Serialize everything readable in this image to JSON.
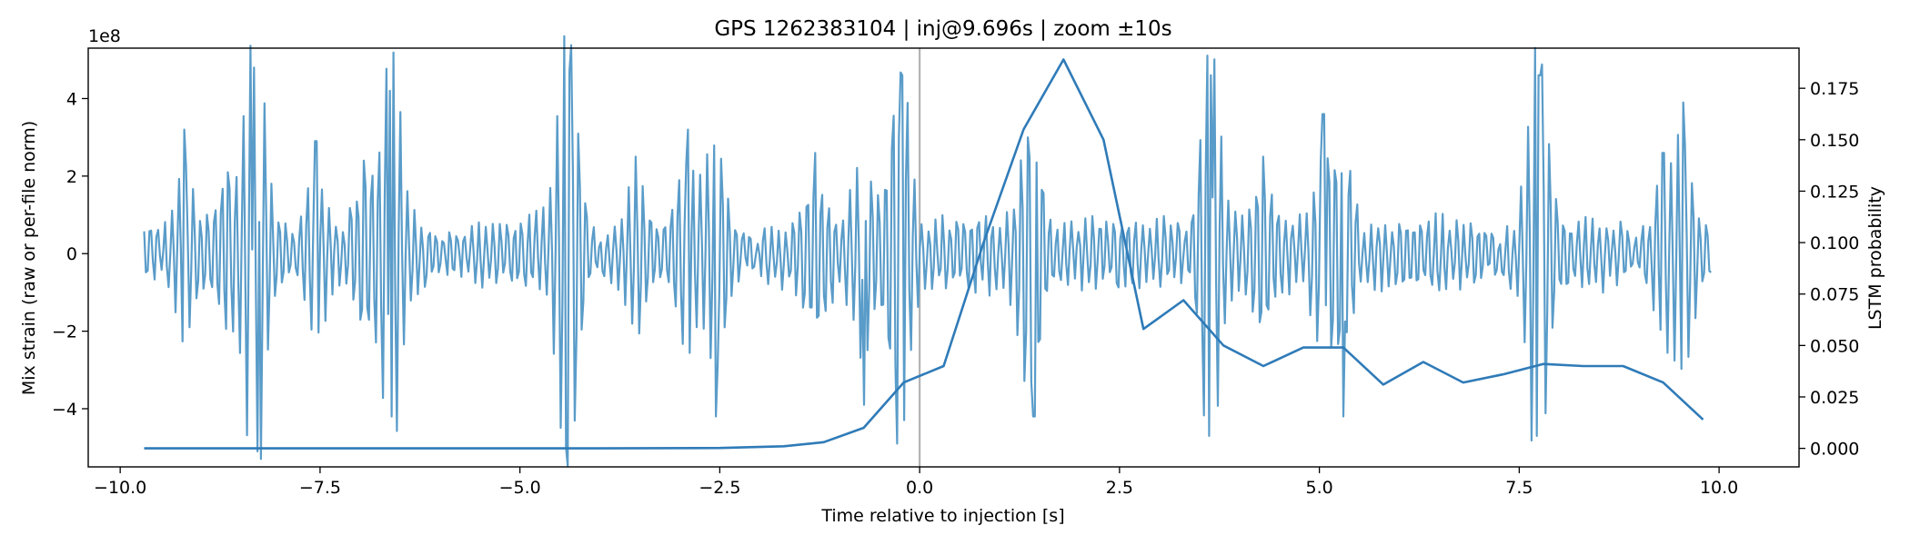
{
  "chart_data": {
    "type": "line",
    "title": "GPS 1262383104 | inj@9.696s | zoom ±10s",
    "xlabel": "Time relative to injection [s]",
    "ylabel_left": "Mix strain (raw or per-file norm)",
    "ylabel_right": "LSTM probability",
    "offset_text": "1e8",
    "xlim": [
      -10.4,
      11.0
    ],
    "ylim_left": [
      -5.5,
      5.3
    ],
    "ylim_right": [
      -0.009,
      0.1945
    ],
    "x_ticks": [
      -10.0,
      -7.5,
      -5.0,
      -2.5,
      0.0,
      2.5,
      5.0,
      7.5,
      10.0
    ],
    "x_tick_labels": [
      "−10.0",
      "−7.5",
      "−5.0",
      "−2.5",
      "0.0",
      "2.5",
      "5.0",
      "7.5",
      "10.0"
    ],
    "y_left_ticks": [
      -4,
      -2,
      0,
      2,
      4
    ],
    "y_left_tick_labels": [
      "−4",
      "−2",
      "0",
      "2",
      "4"
    ],
    "y_right_ticks": [
      0.0,
      0.025,
      0.05,
      0.075,
      0.1,
      0.125,
      0.15,
      0.175
    ],
    "y_right_tick_labels": [
      "0.000",
      "0.025",
      "0.050",
      "0.075",
      "0.100",
      "0.125",
      "0.150",
      "0.175"
    ],
    "injection_marker_x": 0.0,
    "strain_series": {
      "name": "Mix strain",
      "color": "#5a9cc9",
      "x_range": [
        -9.7,
        9.9
      ],
      "base_amplitude": 0.9,
      "note": "dense oscillating strain time series, values in units of 1e8",
      "bursts": [
        {
          "t": -9.2,
          "peak": 3.2
        },
        {
          "t": -8.65,
          "peak": 2.1
        },
        {
          "t": -8.33,
          "peak": 4.8
        },
        {
          "t": -8.29,
          "peak": -5.1
        },
        {
          "t": -7.55,
          "peak": 2.9
        },
        {
          "t": -6.95,
          "peak": 2.4
        },
        {
          "t": -6.62,
          "peak": 4.2
        },
        {
          "t": -6.6,
          "peak": -4.2
        },
        {
          "t": -4.38,
          "peak": 4.7
        },
        {
          "t": -4.42,
          "peak": -5.0
        },
        {
          "t": -3.55,
          "peak": 2.5
        },
        {
          "t": -2.9,
          "peak": 3.2
        },
        {
          "t": -2.55,
          "peak": -4.2
        },
        {
          "t": -1.3,
          "peak": 2.6
        },
        {
          "t": -0.7,
          "peak": -3.9
        },
        {
          "t": -0.22,
          "peak": 4.6
        },
        {
          "t": -0.28,
          "peak": -4.9
        },
        {
          "t": 1.35,
          "peak": 3.0
        },
        {
          "t": 1.43,
          "peak": -4.2
        },
        {
          "t": 3.65,
          "peak": 4.6
        },
        {
          "t": 3.62,
          "peak": -4.7
        },
        {
          "t": 4.3,
          "peak": 2.5
        },
        {
          "t": 5.3,
          "peak": -4.2
        },
        {
          "t": 5.05,
          "peak": 3.6
        },
        {
          "t": 7.75,
          "peak": 4.6
        },
        {
          "t": 7.72,
          "peak": -4.7
        },
        {
          "t": 9.3,
          "peak": 2.6
        },
        {
          "t": 9.55,
          "peak": 3.9
        }
      ]
    },
    "probability_series": {
      "name": "LSTM probability",
      "color": "#2f7bb8",
      "x": [
        -9.7,
        -8.0,
        -6.0,
        -4.0,
        -2.5,
        -1.7,
        -1.2,
        -0.7,
        -0.2,
        0.3,
        0.8,
        1.3,
        1.8,
        2.3,
        2.8,
        3.3,
        3.8,
        4.3,
        4.8,
        5.3,
        5.8,
        6.3,
        6.8,
        7.3,
        7.8,
        8.3,
        8.8,
        9.3,
        9.8
      ],
      "values": [
        0.0,
        0.0,
        0.0,
        0.0,
        0.0002,
        0.001,
        0.003,
        0.01,
        0.032,
        0.04,
        0.1,
        0.155,
        0.189,
        0.15,
        0.058,
        0.072,
        0.05,
        0.04,
        0.049,
        0.049,
        0.031,
        0.042,
        0.032,
        0.036,
        0.041,
        0.04,
        0.04,
        0.032,
        0.014
      ]
    }
  }
}
